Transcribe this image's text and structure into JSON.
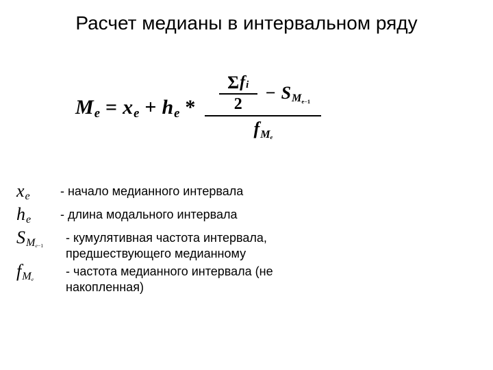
{
  "title": "Расчет медианы в интервальном ряду",
  "formula": {
    "mainVar": "M",
    "mainSub": "e",
    "eq": "=",
    "xVar": "x",
    "xSub": "e",
    "plus": "+",
    "hVar": "h",
    "hSub": "e",
    "star": "*",
    "sigma": "Σ",
    "fVar": "f",
    "fSub": "i",
    "two": "2",
    "minus": "−",
    "SVar": "S",
    "SSub1": "M",
    "SSub2": "e−1",
    "denF": "f",
    "denSub1": "M",
    "denSub2": "e"
  },
  "legend": {
    "row1": {
      "sym": "x",
      "sub": "e",
      "text": "- начало медианного интервала"
    },
    "row2": {
      "sym": "h",
      "sub": "e",
      "text": "- длина модального интервала"
    },
    "row3": {
      "sym": "S",
      "sub1": "M",
      "sub2a": "e",
      "sub2b": "−1",
      "text": "- кумулятивная частота интервала, предшествующего медианному"
    },
    "row4": {
      "sym": "f",
      "sub1": "M",
      "sub2": "e",
      "text": "- частота медианного интервала (не накопленная)"
    }
  },
  "style": {
    "bg": "#ffffff",
    "textColor": "#000000",
    "titleFontSize": 28,
    "formulaFontSize": 30,
    "legendSymFontSize": 26,
    "legendTextFontSize": 18
  }
}
